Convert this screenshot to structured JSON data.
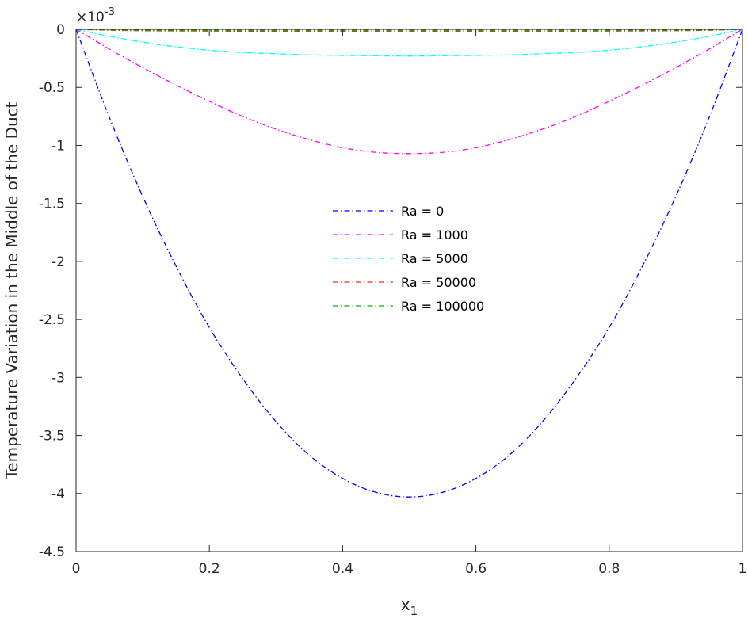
{
  "chart_data": {
    "type": "line",
    "title": "",
    "xlabel": "x",
    "xlabel_subscript": "1",
    "ylabel": "Temperature Variation in the Middle of the Duct",
    "y_multiplier_base": "×10",
    "y_multiplier_exponent": "-3",
    "xlim": [
      0,
      1
    ],
    "ylim": [
      -4.5,
      0
    ],
    "x_ticks": [
      0,
      0.2,
      0.4,
      0.6,
      0.8,
      1
    ],
    "x_tick_labels": [
      "0",
      "0.2",
      "0.4",
      "0.6",
      "0.8",
      "1"
    ],
    "y_ticks": [
      0,
      -0.5,
      -1,
      -1.5,
      -2,
      -2.5,
      -3,
      -3.5,
      -4,
      -4.5
    ],
    "y_tick_labels": [
      "0",
      "-0.5",
      "-1",
      "-1.5",
      "-2",
      "-2.5",
      "-3",
      "-3.5",
      "-4",
      "-4.5"
    ],
    "grid": false,
    "legend_position": "center",
    "x": [
      0,
      0.05,
      0.1,
      0.15,
      0.2,
      0.25,
      0.3,
      0.35,
      0.4,
      0.45,
      0.5,
      0.55,
      0.6,
      0.65,
      0.7,
      0.75,
      0.8,
      0.85,
      0.9,
      0.95,
      1
    ],
    "series": [
      {
        "name": "Ra = 0",
        "color": "#0000ff",
        "values": [
          0,
          -0.76,
          -1.44,
          -2.04,
          -2.57,
          -3.01,
          -3.38,
          -3.67,
          -3.87,
          -3.99,
          -4.03,
          -3.99,
          -3.87,
          -3.67,
          -3.38,
          -3.01,
          -2.57,
          -2.04,
          -1.44,
          -0.76,
          0
        ]
      },
      {
        "name": "Ra = 1000",
        "color": "#ff00ff",
        "values": [
          0,
          -0.17,
          -0.33,
          -0.48,
          -0.62,
          -0.75,
          -0.86,
          -0.95,
          -1.02,
          -1.06,
          -1.07,
          -1.06,
          -1.02,
          -0.95,
          -0.86,
          -0.75,
          -0.62,
          -0.48,
          -0.33,
          -0.17,
          0
        ]
      },
      {
        "name": "Ra = 5000",
        "color": "#00ffff",
        "values": [
          0,
          -0.06,
          -0.11,
          -0.15,
          -0.18,
          -0.2,
          -0.21,
          -0.22,
          -0.225,
          -0.228,
          -0.23,
          -0.228,
          -0.225,
          -0.22,
          -0.21,
          -0.2,
          -0.18,
          -0.15,
          -0.11,
          -0.06,
          0
        ]
      },
      {
        "name": "Ra = 50000",
        "color": "#e0301e",
        "values": [
          0,
          -0.008,
          -0.012,
          -0.014,
          -0.015,
          -0.016,
          -0.016,
          -0.016,
          -0.016,
          -0.016,
          -0.016,
          -0.016,
          -0.016,
          -0.016,
          -0.016,
          -0.016,
          -0.015,
          -0.014,
          -0.012,
          -0.008,
          0
        ]
      },
      {
        "name": "Ra = 100000",
        "color": "#00b000",
        "values": [
          0,
          -0.004,
          -0.006,
          -0.007,
          -0.008,
          -0.008,
          -0.008,
          -0.008,
          -0.008,
          -0.008,
          -0.008,
          -0.008,
          -0.008,
          -0.008,
          -0.008,
          -0.008,
          -0.008,
          -0.007,
          -0.006,
          -0.004,
          0
        ]
      }
    ]
  }
}
